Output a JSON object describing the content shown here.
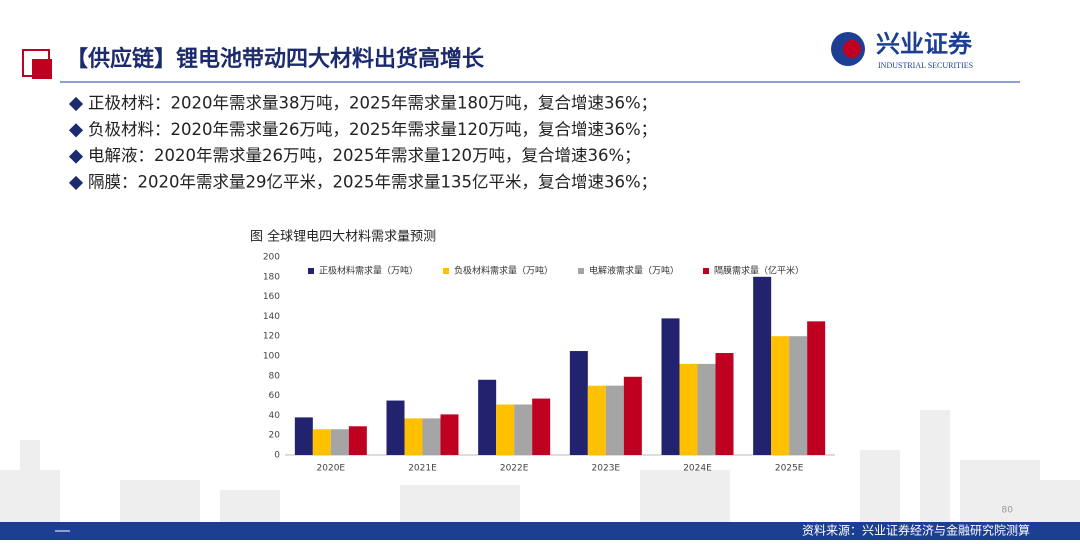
{
  "header": {
    "title": "【供应链】锂电池带动四大材料出货高增长",
    "logo_cn": "兴业证券",
    "logo_en": "INDUSTRIAL SECURITIES"
  },
  "bullets": [
    "正极材料：2020年需求量38万吨，2025年需求量180万吨，复合增速36%；",
    "负极材料：2020年需求量26万吨，2025年需求量120万吨，复合增速36%；",
    "电解液：2020年需求量26万吨，2025年需求量120万吨，复合增速36%；",
    "隔膜：2020年需求量29亿平米，2025年需求量135亿平米，复合增速36%；"
  ],
  "chart_data": {
    "type": "bar",
    "title": "图 全球锂电四大材料需求量预测",
    "categories": [
      "2020E",
      "2021E",
      "2022E",
      "2023E",
      "2024E",
      "2025E"
    ],
    "series": [
      {
        "name": "正极材料需求量（万吨）",
        "color": "#22226e",
        "values": [
          38,
          55,
          76,
          105,
          138,
          180
        ]
      },
      {
        "name": "负极材料需求量（万吨）",
        "color": "#ffc000",
        "values": [
          26,
          37,
          51,
          70,
          92,
          120
        ]
      },
      {
        "name": "电解液需求量（万吨）",
        "color": "#a5a5a5",
        "values": [
          26,
          37,
          51,
          70,
          92,
          120
        ]
      },
      {
        "name": "隔膜需求量（亿平米）",
        "color": "#c00020",
        "values": [
          29,
          41,
          57,
          79,
          103,
          135
        ]
      }
    ],
    "ylim": [
      0,
      200
    ],
    "yticks": [
      0,
      20,
      40,
      60,
      80,
      100,
      120,
      140,
      160,
      180,
      200
    ],
    "grid": false
  },
  "page_number": "80",
  "source": "资料来源：兴业证券经济与金融研究院测算"
}
